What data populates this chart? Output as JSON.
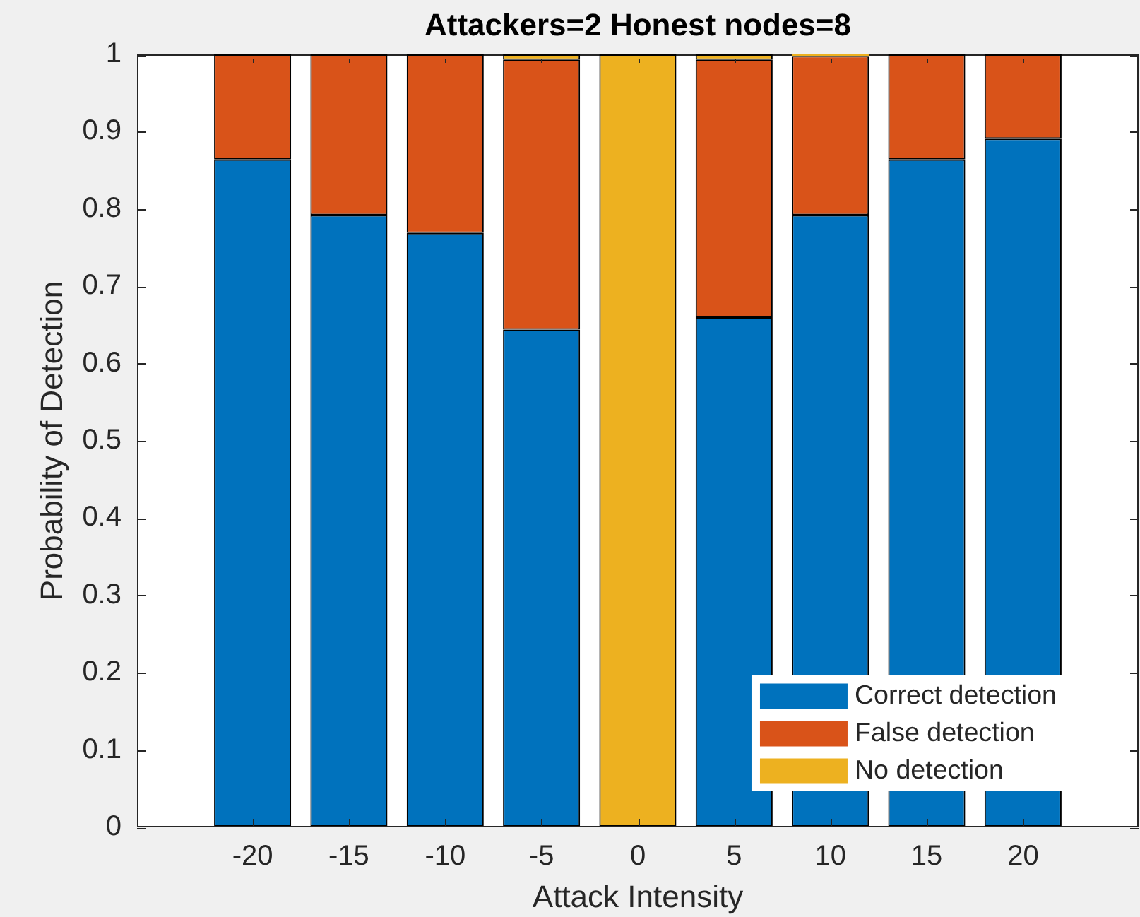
{
  "chart_data": {
    "type": "bar",
    "title": "Attackers=2 Honest nodes=8",
    "xlabel": "Attack Intensity",
    "ylabel": "Probability of Detection",
    "x": [
      -20,
      -15,
      -10,
      -5,
      0,
      5,
      10,
      15,
      20
    ],
    "xlim": [
      -26,
      26
    ],
    "xticks": [
      -20,
      -15,
      -10,
      -5,
      0,
      5,
      10,
      15,
      20
    ],
    "ylim": [
      0,
      1
    ],
    "yticks": [
      0,
      0.1,
      0.2,
      0.3,
      0.4,
      0.5,
      0.6,
      0.7,
      0.8,
      0.9,
      1
    ],
    "stacked": true,
    "grid": false,
    "legend": "bottom right",
    "series": [
      {
        "name": "Correct detection",
        "color": "#0072bd",
        "values": [
          0.864,
          0.792,
          0.769,
          0.644,
          0,
          0.659,
          0.792,
          0.864,
          0.891
        ]
      },
      {
        "name": "False detection",
        "color": "#d95319",
        "values": [
          0.136,
          0.208,
          0.231,
          0.349,
          0,
          0.334,
          0.206,
          0.136,
          0.109
        ]
      },
      {
        "name": "No detection",
        "color": "#edb120",
        "values": [
          0,
          0,
          0,
          0.007,
          1,
          0.007,
          0.002,
          0,
          0
        ]
      }
    ]
  }
}
